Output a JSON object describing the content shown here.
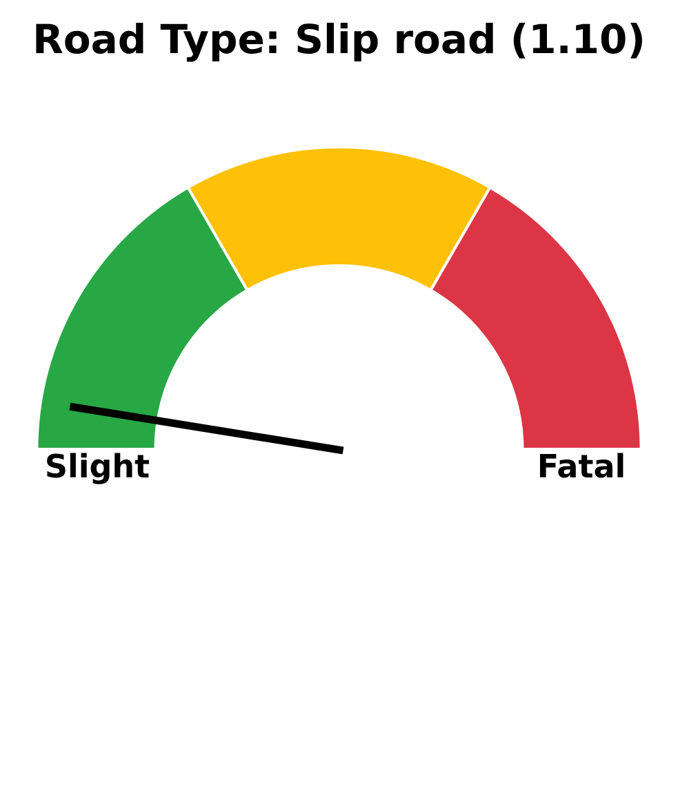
{
  "chart_data": {
    "type": "gauge",
    "title": "Road Type: Slip road (1.10)",
    "value": 1.1,
    "range": [
      1,
      3
    ],
    "bands": [
      {
        "from": 1.0,
        "to": 1.6667,
        "color": "#28a745"
      },
      {
        "from": 1.6667,
        "to": 2.3333,
        "color": "#ffc107"
      },
      {
        "from": 2.3333,
        "to": 3.0,
        "color": "#dc3545"
      }
    ],
    "labels": {
      "min": "Slight",
      "max": "Fatal"
    },
    "needle_color": "#000000"
  }
}
